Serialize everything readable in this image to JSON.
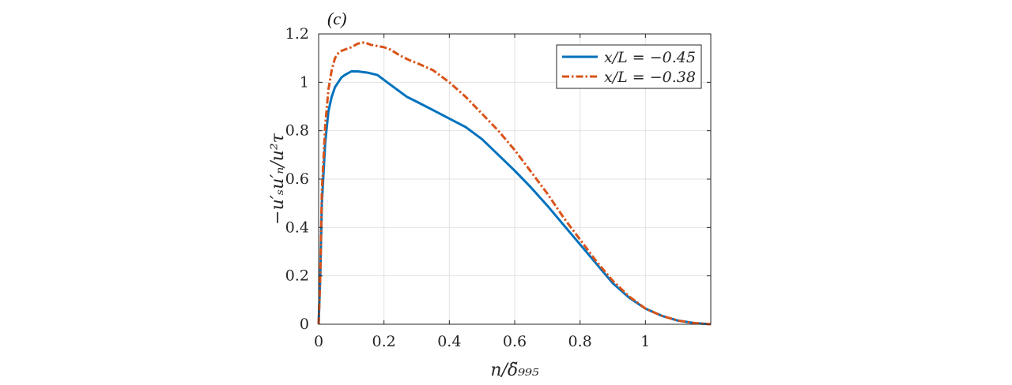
{
  "panel_label": "(c)",
  "chart_data": {
    "type": "line",
    "xlabel": "n/δ̃₉₉₅",
    "ylabel": "−u′ₛu′ₙ/u²τ",
    "xlim": [
      0,
      1.2
    ],
    "ylim": [
      0,
      1.2
    ],
    "xticks": [
      0,
      0.2,
      0.4,
      0.6,
      0.8,
      1
    ],
    "xtick_labels": [
      "0",
      "0.2",
      "0.4",
      "0.6",
      "0.8",
      "1"
    ],
    "yticks": [
      0,
      0.2,
      0.4,
      0.6,
      0.8,
      1,
      1.2
    ],
    "ytick_labels": [
      "0",
      "0.2",
      "0.4",
      "0.6",
      "0.8",
      "1",
      "1.2"
    ],
    "grid": true,
    "legend_position": "top-right",
    "series": [
      {
        "name": "x/L = −0.45",
        "color": "#0072BD",
        "style": "solid",
        "x": [
          0,
          0.005,
          0.01,
          0.02,
          0.03,
          0.04,
          0.05,
          0.06,
          0.07,
          0.08,
          0.1,
          0.12,
          0.15,
          0.18,
          0.2,
          0.22,
          0.25,
          0.27,
          0.3,
          0.35,
          0.4,
          0.45,
          0.5,
          0.55,
          0.6,
          0.65,
          0.7,
          0.75,
          0.8,
          0.85,
          0.9,
          0.95,
          1.0,
          1.05,
          1.1,
          1.15,
          1.2
        ],
        "y": [
          0,
          0.2,
          0.5,
          0.75,
          0.88,
          0.94,
          0.98,
          1.0,
          1.02,
          1.03,
          1.045,
          1.045,
          1.04,
          1.03,
          1.01,
          0.99,
          0.96,
          0.94,
          0.92,
          0.885,
          0.85,
          0.815,
          0.765,
          0.7,
          0.635,
          0.565,
          0.49,
          0.41,
          0.33,
          0.25,
          0.17,
          0.11,
          0.065,
          0.035,
          0.015,
          0.005,
          0.0
        ]
      },
      {
        "name": "x/L = −0.38",
        "color": "#D95319",
        "style": "dashdot",
        "x": [
          0,
          0.005,
          0.01,
          0.02,
          0.03,
          0.04,
          0.05,
          0.06,
          0.07,
          0.08,
          0.1,
          0.12,
          0.14,
          0.16,
          0.18,
          0.2,
          0.22,
          0.25,
          0.28,
          0.3,
          0.35,
          0.4,
          0.45,
          0.5,
          0.55,
          0.6,
          0.65,
          0.7,
          0.75,
          0.8,
          0.85,
          0.9,
          0.95,
          1.0,
          1.05,
          1.1,
          1.15,
          1.2
        ],
        "y": [
          0,
          0.2,
          0.55,
          0.82,
          0.97,
          1.05,
          1.1,
          1.12,
          1.13,
          1.135,
          1.145,
          1.16,
          1.165,
          1.155,
          1.15,
          1.145,
          1.135,
          1.11,
          1.09,
          1.08,
          1.05,
          1.0,
          0.94,
          0.87,
          0.8,
          0.72,
          0.63,
          0.54,
          0.44,
          0.35,
          0.26,
          0.18,
          0.115,
          0.065,
          0.035,
          0.015,
          0.005,
          0.0
        ]
      }
    ]
  }
}
